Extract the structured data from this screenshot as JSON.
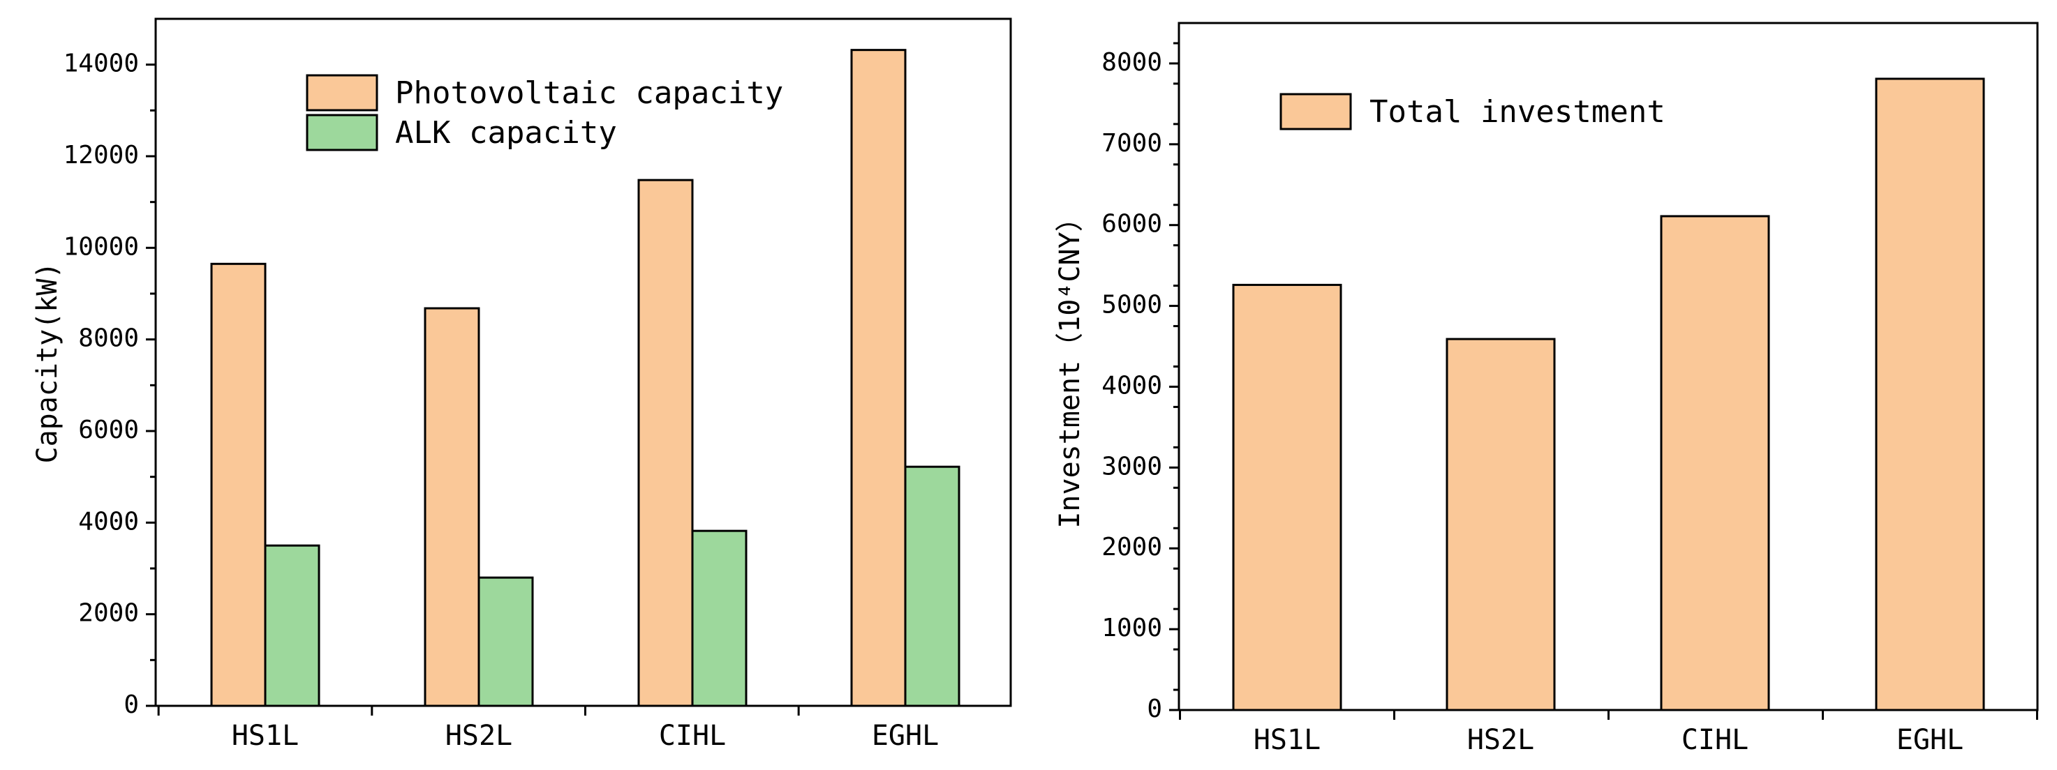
{
  "chart_data": [
    {
      "type": "bar",
      "title": "",
      "xlabel": "",
      "ylabel": "Capacity(kW)",
      "ylim": [
        0,
        15000
      ],
      "yticks": [
        0,
        2000,
        4000,
        6000,
        8000,
        10000,
        12000,
        14000
      ],
      "categories": [
        "HS1L",
        "HS2L",
        "CIHL",
        "EGHL"
      ],
      "legend_position": "top",
      "series": [
        {
          "name": "Photovoltaic capacity",
          "color": "#FAC898",
          "values": [
            9650,
            8680,
            11480,
            14320
          ]
        },
        {
          "name": "ALK capacity",
          "color": "#9DD89C",
          "values": [
            3500,
            2800,
            3820,
            5220
          ]
        }
      ]
    },
    {
      "type": "bar",
      "title": "",
      "xlabel": "",
      "ylabel": "Investment（10⁴CNY）",
      "ylim": [
        0,
        8500
      ],
      "yticks": [
        0,
        1000,
        2000,
        3000,
        4000,
        5000,
        6000,
        7000,
        8000
      ],
      "categories": [
        "HS1L",
        "HS2L",
        "CIHL",
        "EGHL"
      ],
      "legend_position": "top-left",
      "series": [
        {
          "name": "Total investment",
          "color": "#FAC898",
          "values": [
            5260,
            4590,
            6110,
            7810
          ]
        }
      ]
    }
  ]
}
